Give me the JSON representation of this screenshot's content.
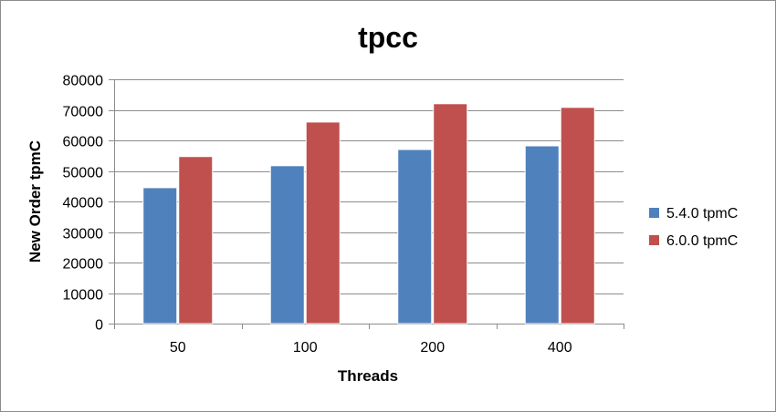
{
  "chart_data": {
    "type": "bar",
    "title": "tpcc",
    "xlabel": "Threads",
    "ylabel": "New Order tpmC",
    "categories": [
      "50",
      "100",
      "200",
      "400"
    ],
    "series": [
      {
        "name": "5.4.0 tpmC",
        "color": "#4f81bd",
        "values": [
          44500,
          51700,
          57000,
          58200
        ]
      },
      {
        "name": "6.0.0 tpmC",
        "color": "#c0504d",
        "values": [
          54700,
          66000,
          72000,
          70800
        ]
      }
    ],
    "ylim": [
      0,
      80000
    ],
    "yticks": [
      "0",
      "10000",
      "20000",
      "30000",
      "40000",
      "50000",
      "60000",
      "70000",
      "80000"
    ],
    "grid": true,
    "legend": "right"
  }
}
